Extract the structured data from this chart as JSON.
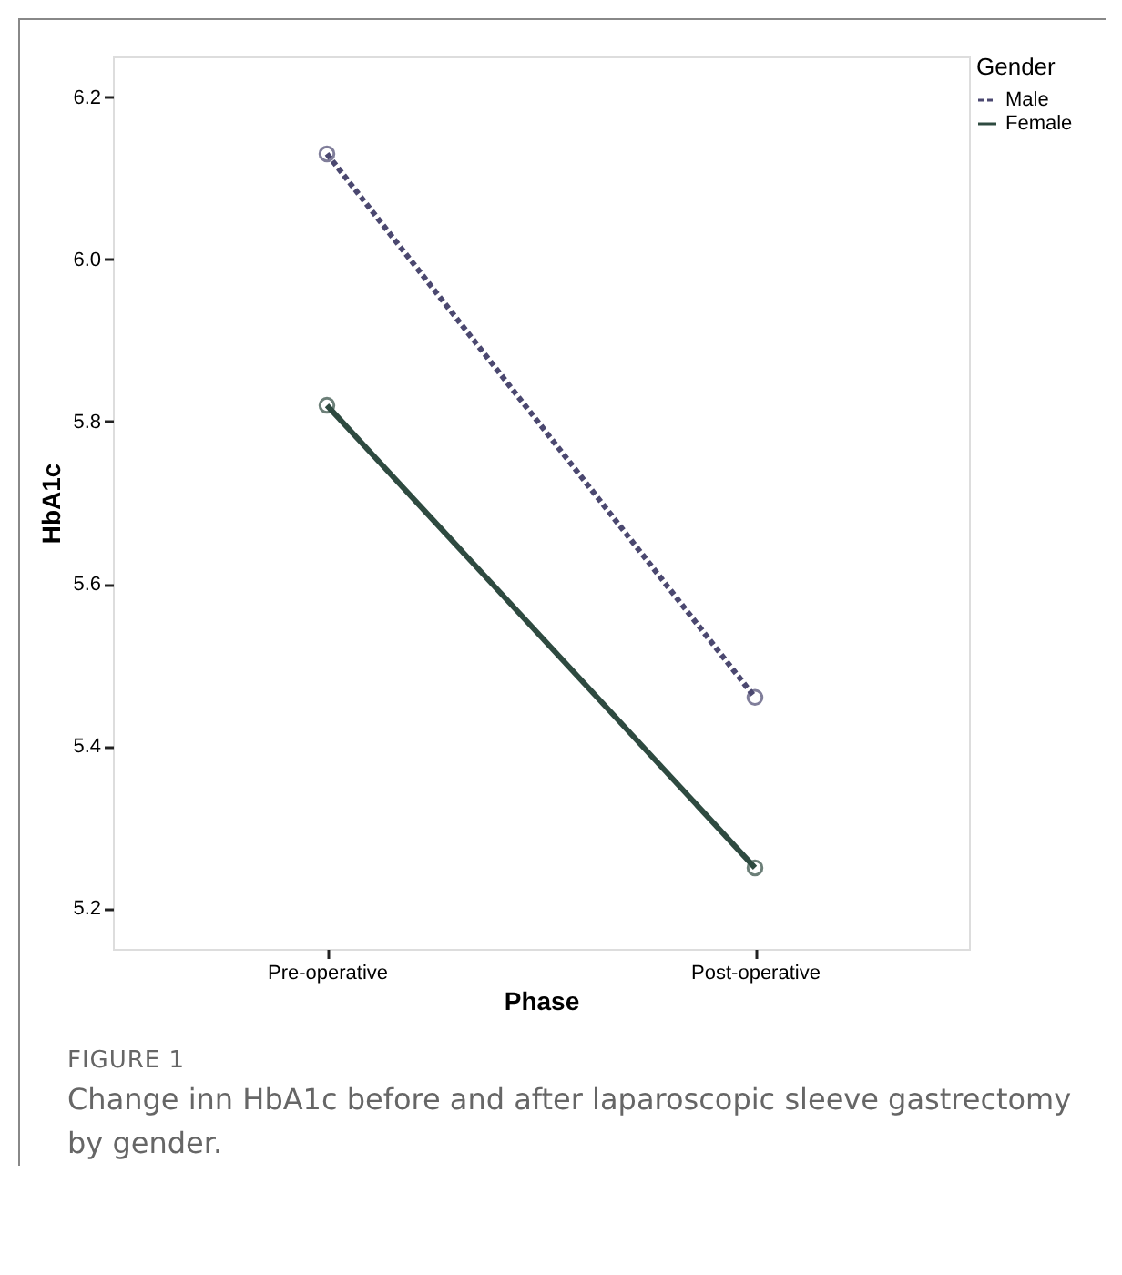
{
  "chart_data": {
    "type": "line",
    "xlabel": "Phase",
    "ylabel": "HbA1c",
    "legend_title": "Gender",
    "categories": [
      "Pre-operative",
      "Post-operative"
    ],
    "series": [
      {
        "name": "Male",
        "color": "#4b4870",
        "values": [
          6.13,
          5.46
        ],
        "line_style": "dotted"
      },
      {
        "name": "Female",
        "color": "#2e4a40",
        "values": [
          5.82,
          5.25
        ],
        "line_style": "solid"
      }
    ],
    "ylim": [
      5.15,
      6.25
    ],
    "yticks": [
      5.2,
      5.4,
      5.6,
      5.8,
      {
        "value": 6,
        "label": "6.0"
      },
      6.2
    ],
    "marker": "circle",
    "legend": "top right",
    "grid": false,
    "annotations": [
      "FIGURE 1",
      "Change inn HbA1c before and after laparoscopic sleeve gastrectomy by gender."
    ]
  }
}
